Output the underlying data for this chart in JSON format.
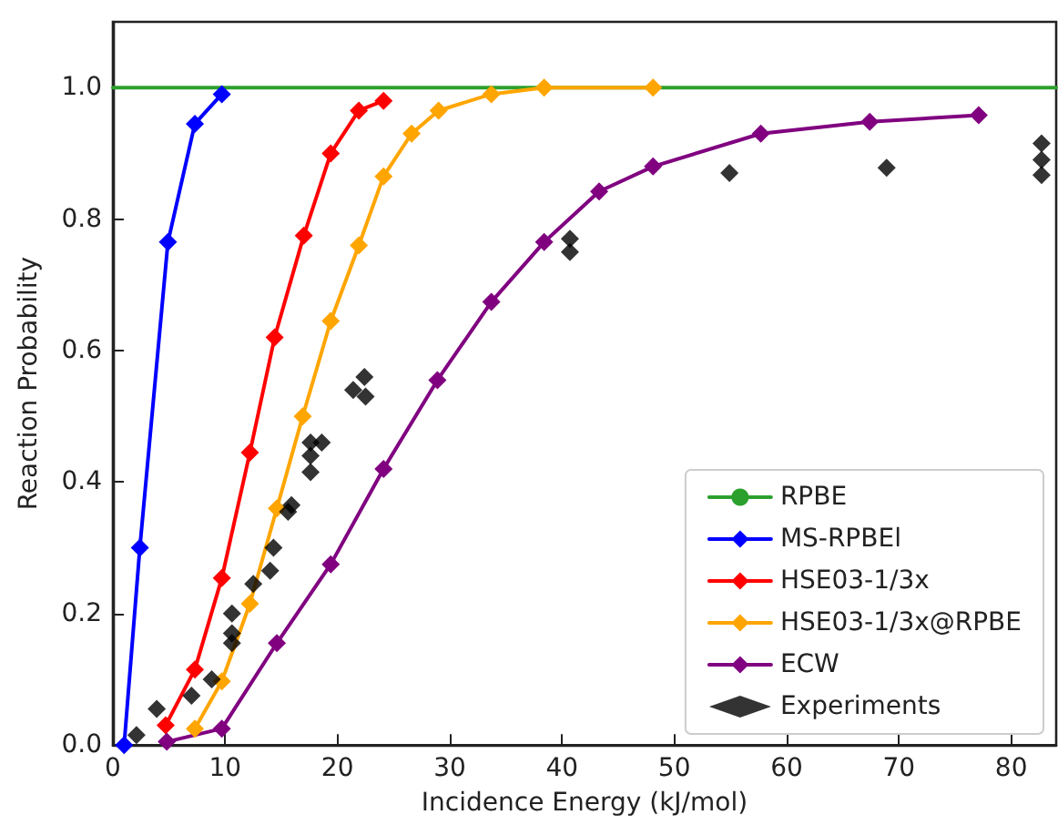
{
  "chart_data": {
    "type": "line",
    "xlabel": "Incidence Energy (kJ/mol)",
    "ylabel": "Reaction Probability",
    "xlim": [
      0,
      84
    ],
    "xticks": [
      0,
      10,
      20,
      30,
      40,
      50,
      60,
      70,
      80
    ],
    "ylim": [
      0,
      1.1
    ],
    "yticks": [
      {
        "value": 0,
        "label": "0.0"
      },
      {
        "value": 0.2,
        "label": "0.2"
      },
      {
        "value": 0.4,
        "label": "0.4"
      },
      {
        "value": 0.6,
        "label": "0.6"
      },
      {
        "value": 0.8,
        "label": "0.8"
      },
      {
        "value": 1,
        "label": "1.0"
      }
    ],
    "legend": "bottom right",
    "grid": false,
    "marker": "diamond",
    "line_style": "solid",
    "series": [
      {
        "name": "RPBE",
        "color": "#2ca02c",
        "marker": "none",
        "x": [
          0,
          84
        ],
        "values": [
          1,
          1
        ]
      },
      {
        "name": "MS-RPBEl",
        "color": "#0000ff",
        "x": [
          1.0,
          2.4,
          4.9,
          7.3,
          9.7
        ],
        "values": [
          0,
          0.3,
          0.765,
          0.945,
          0.99
        ]
      },
      {
        "name": "HSE03-1/3x",
        "color": "#ff0000",
        "x": [
          4.7,
          7.3,
          9.7,
          12.2,
          14.4,
          17.0,
          19.4,
          21.9,
          24.1
        ],
        "values": [
          0.03,
          0.115,
          0.254,
          0.445,
          0.62,
          0.775,
          0.9,
          0.965,
          0.98
        ]
      },
      {
        "name": "HSE03-1/3x@RPBE",
        "color": "#ffa500",
        "x": [
          7.3,
          9.7,
          12.2,
          14.6,
          16.9,
          19.4,
          21.9,
          24.1,
          26.6,
          29.0,
          33.7,
          38.4,
          48.1
        ],
        "values": [
          0.025,
          0.097,
          0.215,
          0.36,
          0.5,
          0.645,
          0.76,
          0.865,
          0.93,
          0.965,
          0.99,
          1.0,
          1.0
        ]
      },
      {
        "name": "ECW",
        "color": "#800080",
        "x": [
          4.8,
          9.7,
          14.6,
          19.4,
          24.1,
          28.9,
          33.7,
          38.4,
          43.3,
          48.1,
          57.7,
          67.4,
          77.1
        ],
        "values": [
          0.005,
          0.025,
          0.155,
          0.275,
          0.42,
          0.555,
          0.674,
          0.765,
          0.842,
          0.88,
          0.93,
          0.948,
          0.958
        ]
      },
      {
        "name": "Experiments",
        "type": "scatter",
        "color": "#000000",
        "x": [
          2.1,
          3.9,
          7.0,
          8.8,
          10.6,
          10.6,
          10.6,
          12.5,
          14.0,
          14.3,
          15.6,
          15.9,
          17.6,
          17.6,
          17.6,
          18.6,
          21.4,
          22.4,
          22.5,
          40.7,
          40.7,
          54.9,
          68.9,
          82.7,
          82.7,
          82.7
        ],
        "values": [
          0.015,
          0.055,
          0.075,
          0.1,
          0.2,
          0.17,
          0.155,
          0.245,
          0.265,
          0.3,
          0.355,
          0.365,
          0.415,
          0.44,
          0.46,
          0.46,
          0.54,
          0.56,
          0.53,
          0.77,
          0.75,
          0.87,
          0.878,
          0.915,
          0.89,
          0.867
        ]
      }
    ]
  }
}
